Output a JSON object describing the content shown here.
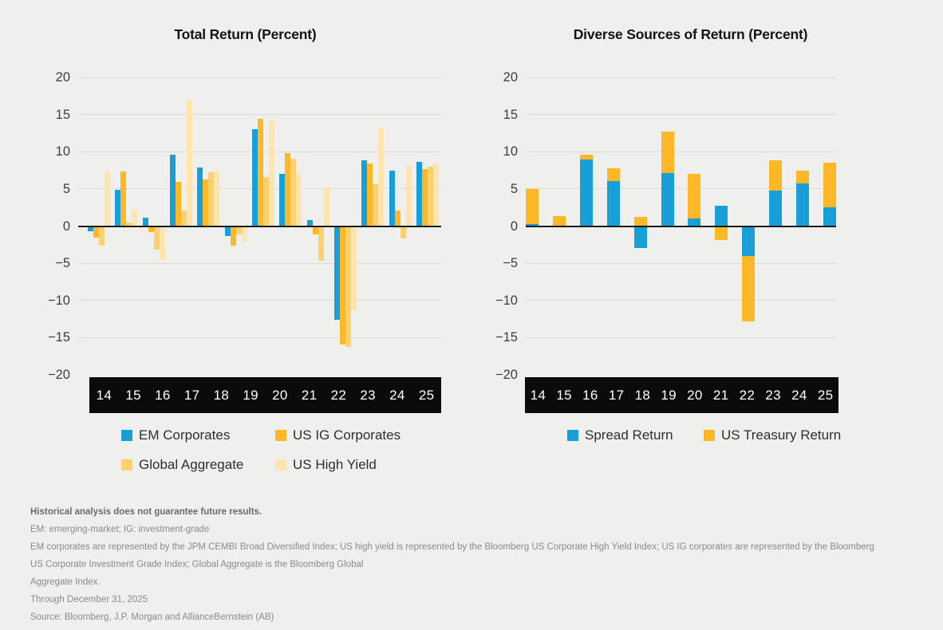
{
  "titles": {
    "left": "Total Return (Percent)",
    "right": "Diverse Sources of Return (Percent)"
  },
  "y_ticks": [
    "20",
    "15",
    "10",
    "5",
    "0",
    "−5",
    "−10",
    "−15",
    "−20"
  ],
  "colors": {
    "background": "#efefed",
    "band": "#0b0b0b",
    "gridline": "#dbdbd9",
    "zero_axis": "#1a1a1a",
    "band_label": "#ffffff"
  },
  "chart_data": [
    {
      "type": "grouped-bar",
      "title": "Total Return (Percent)",
      "categories": [
        "",
        "14",
        "15",
        "16",
        "17",
        "18",
        "19",
        "20",
        "21",
        "22",
        "23",
        "24",
        "25"
      ],
      "axis_labels": [
        "14",
        "15",
        "16",
        "17",
        "18",
        "19",
        "20",
        "21",
        "22",
        "23",
        "24",
        "25"
      ],
      "ylim": [
        -20,
        20
      ],
      "grid": true,
      "legend_position": "bottom",
      "series": [
        {
          "name": "EM Corporates",
          "color": "#189fd8",
          "values": [
            -0.7,
            4.9,
            1.1,
            9.6,
            7.9,
            -1.3,
            13.0,
            7.0,
            0.8,
            -12.6,
            8.9,
            7.5,
            8.6
          ]
        },
        {
          "name": "US IG Corporates",
          "color": "#fdb827",
          "values": [
            -1.6,
            7.3,
            -0.8,
            6.0,
            6.3,
            -2.6,
            14.4,
            9.8,
            -1.1,
            -15.9,
            8.4,
            2.1,
            7.7
          ]
        },
        {
          "name": "Global Aggregate",
          "color": "#fdd070",
          "values": [
            -2.6,
            0.5,
            -3.2,
            2.1,
            7.2,
            -1.1,
            6.6,
            9.1,
            -4.7,
            -16.3,
            5.6,
            -1.7,
            8.0
          ]
        },
        {
          "name": "US High Yield",
          "color": "#fee5ad",
          "values": [
            7.3,
            2.2,
            -4.6,
            16.9,
            7.4,
            -2.1,
            14.2,
            7.0,
            5.2,
            -11.3,
            13.2,
            8.1,
            8.4
          ]
        }
      ]
    },
    {
      "type": "stacked-bar",
      "title": "Diverse Sources of Return (Percent)",
      "categories": [
        "14",
        "15",
        "16",
        "17",
        "18",
        "19",
        "20",
        "21",
        "22",
        "23",
        "24",
        "25"
      ],
      "axis_labels": [
        "14",
        "15",
        "16",
        "17",
        "18",
        "19",
        "20",
        "21",
        "22",
        "23",
        "24",
        "25"
      ],
      "ylim": [
        -20,
        20
      ],
      "grid": true,
      "legend_position": "bottom",
      "series": [
        {
          "name": "Spread Return",
          "color": "#189fd8",
          "values": [
            0.25,
            0.1,
            9.0,
            6.1,
            -2.9,
            7.1,
            1.0,
            2.75,
            -4.0,
            4.8,
            5.7,
            2.5
          ]
        },
        {
          "name": "US Treasury Return",
          "color": "#fdb827",
          "values": [
            4.75,
            1.2,
            0.65,
            1.7,
            1.25,
            5.65,
            6.0,
            -1.9,
            -8.8,
            4.1,
            1.8,
            6.05
          ]
        }
      ]
    }
  ],
  "footnotes": [
    "Historical analysis does not guarantee future results.",
    "EM: emerging-market; IG: investment-grade",
    "EM corporates are represented by the JPM CEMBI Broad Diversified Index; US high yield is represented by the Bloomberg US Corporate High Yield Index; US IG corporates are represented by the Bloomberg",
    "US Corporate Investment Grade Index; Global Aggregate is the Bloomberg Global",
    "Aggregate Index.",
    "Through December 31, 2025",
    "Source: Bloomberg, J.P. Morgan and AllianceBernstein (AB)"
  ]
}
